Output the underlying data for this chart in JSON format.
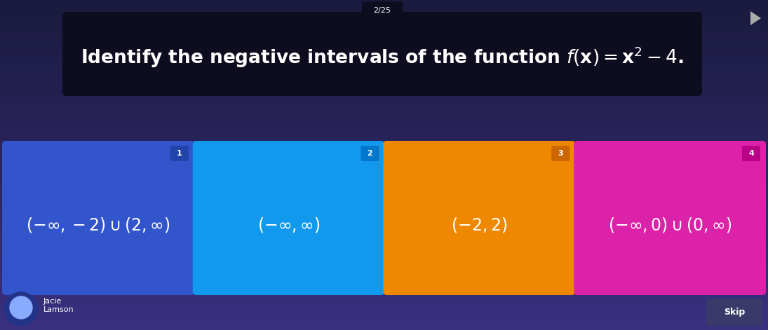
{
  "bg_color_top": "#1a1a3e",
  "bg_color_bottom": "#3a3080",
  "title_box_color": "#0d0d1f",
  "title_text_plain": "Identify the negative intervals of the function ",
  "title_math": "$f(\\mathbf{x}) = \\mathbf{x}^2 - 4.$",
  "subtitle_text": "2/25",
  "subtitle_tab_color": "#0d0d1f",
  "cards": [
    {
      "number": "1",
      "label": "$(-\\infty, -2) \\cup (2, \\infty)$",
      "bg_color": "#3355cc",
      "num_bg": "#2244aa"
    },
    {
      "number": "2",
      "label": "$(-\\infty, \\infty)$",
      "bg_color": "#1199ee",
      "num_bg": "#0077cc"
    },
    {
      "number": "3",
      "label": "$(-2, 2)$",
      "bg_color": "#ee8800",
      "num_bg": "#cc6600"
    },
    {
      "number": "4",
      "label": "$(-\\infty, 0) \\cup (0, \\infty)$",
      "bg_color": "#dd22aa",
      "num_bg": "#bb0088"
    }
  ],
  "skip_btn_color": "#3a3a6a",
  "skip_text": "Skip",
  "footer_name": "Jacie\nLamson",
  "title_fontsize": 19,
  "card_label_fontsize": 17,
  "card_num_fontsize": 8,
  "subtitle_fontsize": 8
}
